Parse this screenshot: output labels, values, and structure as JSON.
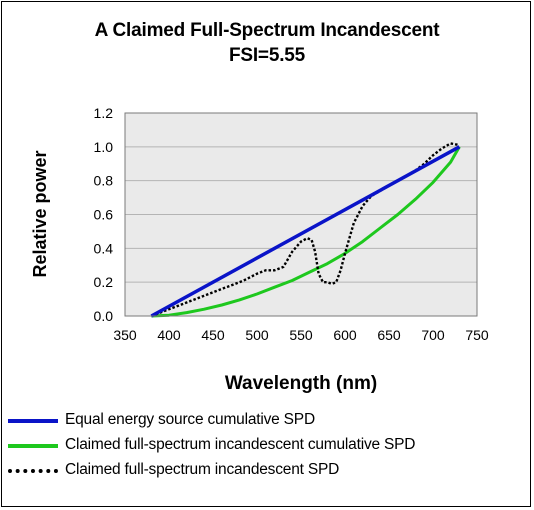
{
  "chart_data": {
    "type": "line",
    "title": "A Claimed Full-Spectrum Incandescent",
    "subtitle": "FSI=5.55",
    "xlabel": "Wavelength (nm)",
    "ylabel": "Relative power",
    "xlim": [
      350,
      750
    ],
    "ylim": [
      0,
      1.2
    ],
    "x_ticks": [
      350,
      400,
      450,
      500,
      550,
      600,
      650,
      700,
      750
    ],
    "y_ticks": [
      0.0,
      0.2,
      0.4,
      0.6,
      0.8,
      1.0,
      1.2
    ],
    "x_tick_labels": [
      "350",
      "400",
      "450",
      "500",
      "550",
      "600",
      "650",
      "700",
      "750"
    ],
    "y_tick_labels": [
      "0.0",
      "0.2",
      "0.4",
      "0.6",
      "0.8",
      "1.0",
      "1.2"
    ],
    "grid": "horizontal",
    "plot_background": "#eaeaea",
    "legend_position": "bottom",
    "series": [
      {
        "name": "Equal energy source cumulative SPD",
        "color": "#0a14c8",
        "style": "solid",
        "x": [
          380,
          730
        ],
        "y": [
          0.0,
          1.0
        ]
      },
      {
        "name": "Claimed full-spectrum incandescent cumulative SPD",
        "color": "#1ec81e",
        "style": "solid",
        "x": [
          380,
          400,
          420,
          440,
          460,
          480,
          500,
          520,
          540,
          560,
          580,
          600,
          620,
          640,
          660,
          680,
          700,
          720,
          730
        ],
        "y": [
          0.0,
          0.005,
          0.02,
          0.04,
          0.065,
          0.095,
          0.13,
          0.17,
          0.21,
          0.26,
          0.31,
          0.37,
          0.44,
          0.52,
          0.6,
          0.69,
          0.79,
          0.91,
          1.0
        ]
      },
      {
        "name": "Claimed full-spectrum incandescent SPD",
        "color": "#000000",
        "style": "dotted",
        "x": [
          380,
          395,
          410,
          425,
          440,
          455,
          470,
          485,
          500,
          510,
          520,
          530,
          540,
          550,
          557,
          562,
          566,
          570,
          575,
          580,
          585,
          590,
          595,
          600,
          605,
          610,
          620,
          630,
          640,
          660,
          680,
          690,
          700,
          710,
          720,
          730
        ],
        "y": [
          0.0,
          0.03,
          0.06,
          0.09,
          0.12,
          0.15,
          0.18,
          0.21,
          0.25,
          0.27,
          0.27,
          0.29,
          0.38,
          0.44,
          0.46,
          0.45,
          0.38,
          0.25,
          0.2,
          0.2,
          0.19,
          0.2,
          0.27,
          0.37,
          0.46,
          0.55,
          0.65,
          0.71,
          0.74,
          0.8,
          0.86,
          0.9,
          0.95,
          0.99,
          1.02,
          1.01
        ]
      }
    ]
  }
}
